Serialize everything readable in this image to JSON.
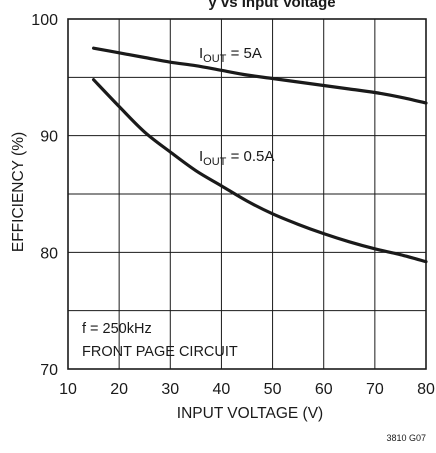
{
  "chart_data": {
    "type": "line",
    "title_fragment": "y vs Input Voltage",
    "xlabel": "INPUT VOLTAGE (V)",
    "ylabel": "EFFICIENCY (%)",
    "xlim": [
      10,
      80
    ],
    "ylim": [
      70,
      100
    ],
    "xticks": [
      10,
      20,
      30,
      40,
      50,
      60,
      70,
      80
    ],
    "yticks": [
      70,
      80,
      90,
      100
    ],
    "grid": true,
    "series": [
      {
        "name": "IOUT = 5A",
        "label_main": "I",
        "label_sub": "OUT",
        "label_rest": " = 5A",
        "x": [
          15,
          20,
          25,
          30,
          35,
          40,
          45,
          50,
          55,
          60,
          65,
          70,
          75,
          80
        ],
        "y": [
          97.5,
          97.1,
          96.7,
          96.3,
          96.0,
          95.6,
          95.2,
          94.9,
          94.6,
          94.3,
          94.0,
          93.7,
          93.3,
          92.8
        ]
      },
      {
        "name": "IOUT = 0.5A",
        "label_main": "I",
        "label_sub": "OUT",
        "label_rest": " = 0.5A",
        "x": [
          15,
          20,
          25,
          30,
          35,
          40,
          45,
          50,
          55,
          60,
          65,
          70,
          75,
          80
        ],
        "y": [
          94.8,
          92.5,
          90.3,
          88.6,
          87.0,
          85.7,
          84.4,
          83.3,
          82.4,
          81.6,
          80.9,
          80.3,
          79.8,
          79.2
        ]
      }
    ],
    "notes": [
      "f = 250kHz",
      "FRONT PAGE CIRCUIT"
    ],
    "figure_code": "3810 G07",
    "line_color": "#1a1a1a",
    "grid_color": "#1a1a1a"
  }
}
